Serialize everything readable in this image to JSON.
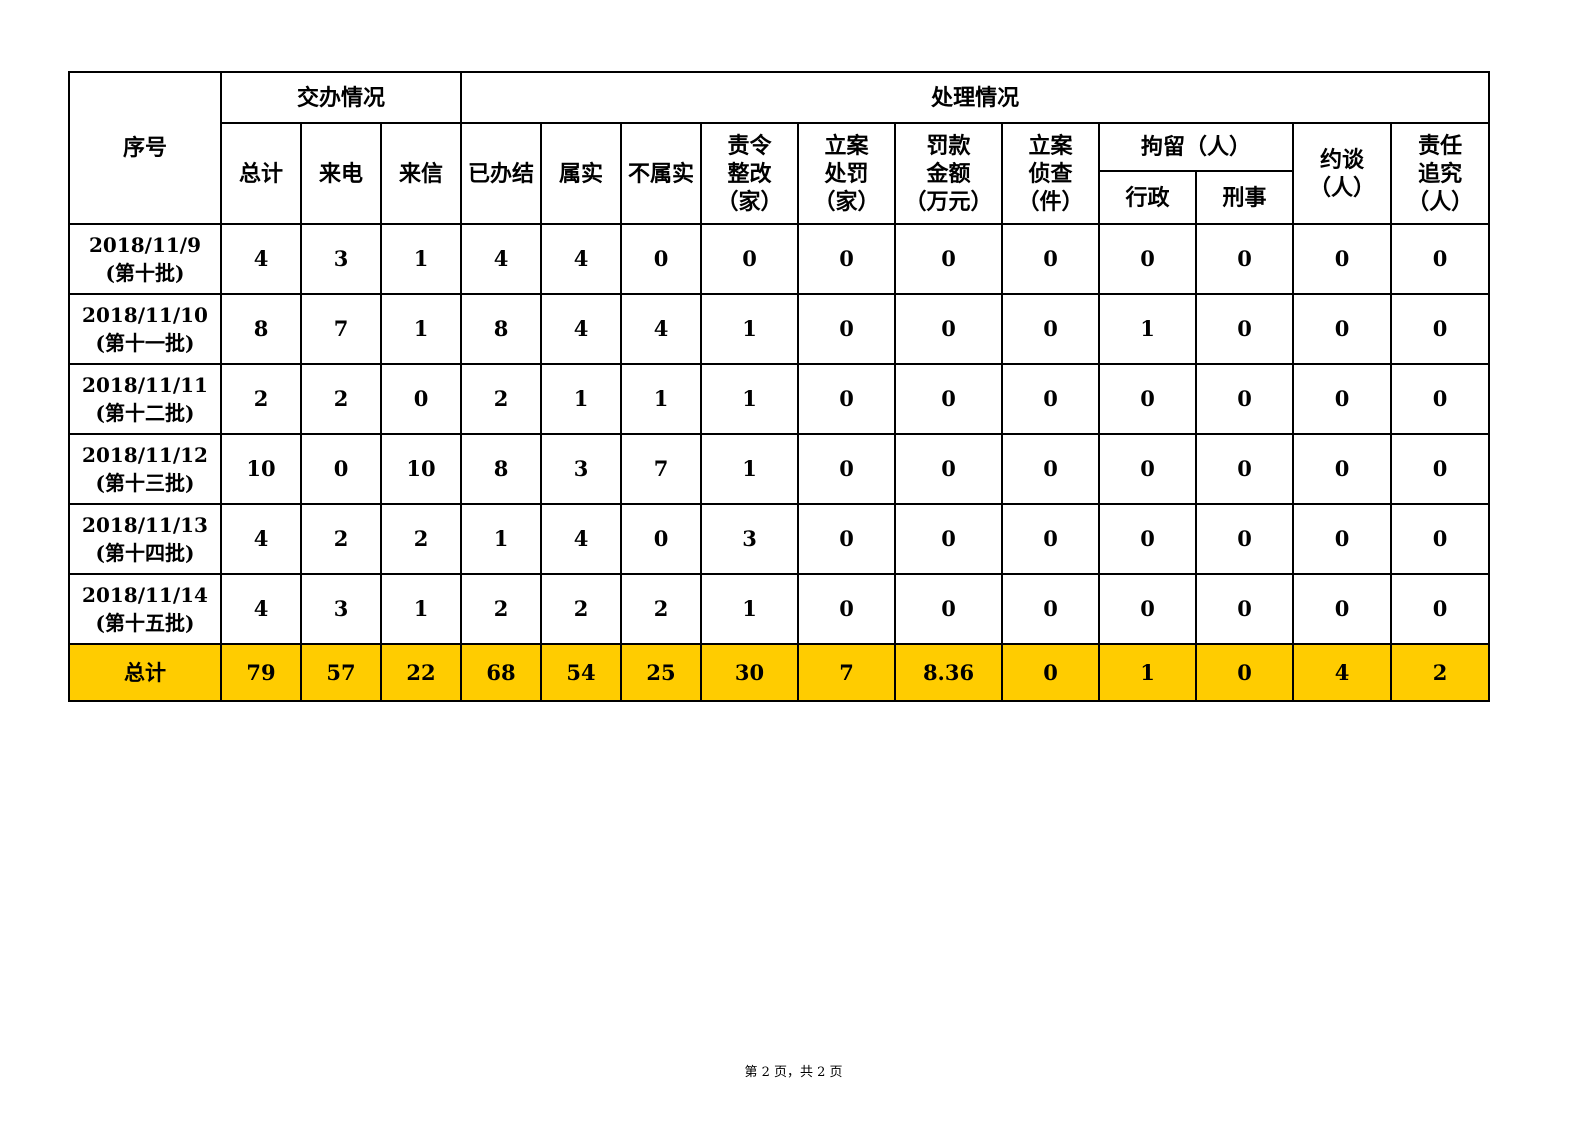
{
  "table": {
    "header": {
      "seq": "序号",
      "group_assigned": "交办情况",
      "group_handled": "处理情况",
      "detention_group": "拘留（人）",
      "columns": [
        "总计",
        "来电",
        "来信",
        "已办结",
        "属实",
        "不属实",
        "责令\n整改\n（家）",
        "立案\n处罚\n（家）",
        "罚款\n金额\n（万元）",
        "立案\n侦查\n（件）",
        "行政",
        "刑事",
        "约谈\n（人）",
        "责任\n追究\n（人）"
      ]
    },
    "rows": [
      {
        "date": "2018/11/9",
        "batch": "(第十批)",
        "values": [
          "4",
          "3",
          "1",
          "4",
          "4",
          "0",
          "0",
          "0",
          "0",
          "0",
          "0",
          "0",
          "0",
          "0"
        ]
      },
      {
        "date": "2018/11/10",
        "batch": "(第十一批)",
        "values": [
          "8",
          "7",
          "1",
          "8",
          "4",
          "4",
          "1",
          "0",
          "0",
          "0",
          "1",
          "0",
          "0",
          "0"
        ]
      },
      {
        "date": "2018/11/11",
        "batch": "(第十二批)",
        "values": [
          "2",
          "2",
          "0",
          "2",
          "1",
          "1",
          "1",
          "0",
          "0",
          "0",
          "0",
          "0",
          "0",
          "0"
        ]
      },
      {
        "date": "2018/11/12",
        "batch": "(第十三批)",
        "values": [
          "10",
          "0",
          "10",
          "8",
          "3",
          "7",
          "1",
          "0",
          "0",
          "0",
          "0",
          "0",
          "0",
          "0"
        ]
      },
      {
        "date": "2018/11/13",
        "batch": "(第十四批)",
        "values": [
          "4",
          "2",
          "2",
          "1",
          "4",
          "0",
          "3",
          "0",
          "0",
          "0",
          "0",
          "0",
          "0",
          "0"
        ]
      },
      {
        "date": "2018/11/14",
        "batch": "(第十五批)",
        "values": [
          "4",
          "3",
          "1",
          "2",
          "2",
          "2",
          "1",
          "0",
          "0",
          "0",
          "0",
          "0",
          "0",
          "0"
        ]
      }
    ],
    "total": {
      "label": "总计",
      "values": [
        "79",
        "57",
        "22",
        "68",
        "54",
        "25",
        "30",
        "7",
        "8.36",
        "0",
        "1",
        "0",
        "4",
        "2"
      ]
    },
    "total_color": "#ffcc00"
  },
  "footer": "第 2 页，共 2 页"
}
